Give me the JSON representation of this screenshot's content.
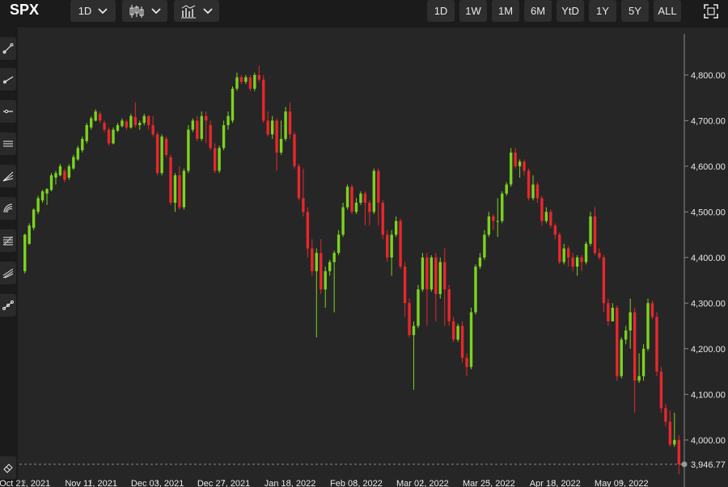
{
  "toolbar": {
    "ticker": "SPX",
    "interval_label": "1D",
    "chart_type_icon": "candlestick-icon",
    "indicators_icon": "indicators-icon",
    "ranges": [
      "1D",
      "1W",
      "1M",
      "6M",
      "YtD",
      "1Y",
      "5Y",
      "ALL"
    ],
    "fullscreen_icon": "fullscreen-icon"
  },
  "left_tools": [
    "trend-line-icon",
    "ray-icon",
    "horizontal-line-icon",
    "parallel-channel-icon",
    "fan-icon",
    "arc-icon",
    "fibonacci-icon",
    "pitchfork-icon",
    "path-icon",
    "eraser-icon"
  ],
  "colors": {
    "up": "#7cd320",
    "down": "#e8272d",
    "background": "#262626",
    "grid": "#3a3a3a",
    "text": "#e8e8e8"
  },
  "chart_data": {
    "type": "candlestick",
    "y_ticks": [
      "4,800.00",
      "4,700.00",
      "4,600.00",
      "4,500.00",
      "4,400.00",
      "4,300.00",
      "4,200.00",
      "4,100.00",
      "4,000.00"
    ],
    "y_tick_values": [
      4800,
      4700,
      4600,
      4500,
      4400,
      4300,
      4200,
      4100,
      4000
    ],
    "x_labels": [
      "Oct 21, 2021",
      "Nov 11, 2021",
      "Dec 03, 2021",
      "Dec 27, 2021",
      "Jan 18, 2022",
      "Feb 08, 2022",
      "Mar 02, 2022",
      "Mar 25, 2022",
      "Apr 18, 2022",
      "May 09, 2022"
    ],
    "x_label_index": [
      0,
      15,
      30,
      45,
      60,
      75,
      90,
      105,
      120,
      135
    ],
    "ylim": [
      3920,
      4890
    ],
    "current_price_label": "3,946.77",
    "current_price": 3946.77,
    "candles": [
      [
        4370,
        4450,
        4365,
        4452
      ],
      [
        4430,
        4470,
        4428,
        4475
      ],
      [
        4465,
        4505,
        4460,
        4508
      ],
      [
        4500,
        4530,
        4495,
        4535
      ],
      [
        4525,
        4545,
        4520,
        4548
      ],
      [
        4540,
        4550,
        4515,
        4552
      ],
      [
        4548,
        4580,
        4545,
        4585
      ],
      [
        4575,
        4585,
        4560,
        4590
      ],
      [
        4580,
        4600,
        4578,
        4605
      ],
      [
        4590,
        4570,
        4565,
        4595
      ],
      [
        4575,
        4600,
        4570,
        4605
      ],
      [
        4595,
        4620,
        4592,
        4625
      ],
      [
        4615,
        4640,
        4612,
        4645
      ],
      [
        4635,
        4660,
        4630,
        4665
      ],
      [
        4655,
        4690,
        4650,
        4695
      ],
      [
        4685,
        4705,
        4680,
        4710
      ],
      [
        4700,
        4720,
        4698,
        4725
      ],
      [
        4715,
        4700,
        4695,
        4720
      ],
      [
        4695,
        4680,
        4675,
        4700
      ],
      [
        4680,
        4650,
        4645,
        4685
      ],
      [
        4650,
        4680,
        4648,
        4685
      ],
      [
        4678,
        4690,
        4675,
        4695
      ],
      [
        4688,
        4700,
        4685,
        4705
      ],
      [
        4698,
        4685,
        4680,
        4702
      ],
      [
        4685,
        4710,
        4682,
        4715
      ],
      [
        4708,
        4690,
        4685,
        4740
      ],
      [
        4690,
        4695,
        4680,
        4700
      ],
      [
        4695,
        4710,
        4690,
        4715
      ],
      [
        4710,
        4690,
        4680,
        4712
      ],
      [
        4690,
        4670,
        4665,
        4710
      ],
      [
        4670,
        4585,
        4580,
        4675
      ],
      [
        4585,
        4665,
        4580,
        4670
      ],
      [
        4660,
        4625,
        4620,
        4665
      ],
      [
        4620,
        4520,
        4515,
        4625
      ],
      [
        4520,
        4580,
        4500,
        4585
      ],
      [
        4580,
        4510,
        4505,
        4600
      ],
      [
        4510,
        4590,
        4505,
        4595
      ],
      [
        4590,
        4680,
        4585,
        4690
      ],
      [
        4680,
        4700,
        4675,
        4705
      ],
      [
        4700,
        4660,
        4655,
        4710
      ],
      [
        4660,
        4710,
        4655,
        4720
      ],
      [
        4710,
        4700,
        4650,
        4720
      ],
      [
        4690,
        4640,
        4635,
        4700
      ],
      [
        4640,
        4590,
        4585,
        4650
      ],
      [
        4590,
        4640,
        4585,
        4645
      ],
      [
        4640,
        4690,
        4635,
        4700
      ],
      [
        4690,
        4710,
        4680,
        4720
      ],
      [
        4700,
        4770,
        4695,
        4775
      ],
      [
        4770,
        4795,
        4765,
        4805
      ],
      [
        4795,
        4785,
        4780,
        4800
      ],
      [
        4785,
        4795,
        4780,
        4800
      ],
      [
        4795,
        4770,
        4765,
        4800
      ],
      [
        4770,
        4800,
        4765,
        4805
      ],
      [
        4800,
        4790,
        4785,
        4820
      ],
      [
        4790,
        4700,
        4695,
        4800
      ],
      [
        4700,
        4670,
        4665,
        4720
      ],
      [
        4670,
        4700,
        4660,
        4710
      ],
      [
        4700,
        4630,
        4590,
        4705
      ],
      [
        4630,
        4660,
        4625,
        4700
      ],
      [
        4660,
        4720,
        4655,
        4730
      ],
      [
        4720,
        4670,
        4660,
        4740
      ],
      [
        4670,
        4600,
        4595,
        4675
      ],
      [
        4600,
        4530,
        4525,
        4605
      ],
      [
        4530,
        4500,
        4490,
        4595
      ],
      [
        4500,
        4420,
        4400,
        4510
      ],
      [
        4420,
        4370,
        4360,
        4440
      ],
      [
        4370,
        4410,
        4225,
        4420
      ],
      [
        4410,
        4330,
        4320,
        4440
      ],
      [
        4330,
        4370,
        4290,
        4380
      ],
      [
        4370,
        4390,
        4360,
        4395
      ],
      [
        4390,
        4410,
        4280,
        4415
      ],
      [
        4410,
        4450,
        4405,
        4460
      ],
      [
        4450,
        4510,
        4445,
        4520
      ],
      [
        4510,
        4555,
        4505,
        4560
      ],
      [
        4555,
        4500,
        4495,
        4560
      ],
      [
        4500,
        4520,
        4495,
        4530
      ],
      [
        4520,
        4540,
        4515,
        4545
      ],
      [
        4540,
        4520,
        4470,
        4545
      ],
      [
        4520,
        4500,
        4470,
        4525
      ],
      [
        4500,
        4590,
        4495,
        4595
      ],
      [
        4590,
        4520,
        4470,
        4595
      ],
      [
        4520,
        4450,
        4440,
        4525
      ],
      [
        4450,
        4400,
        4390,
        4460
      ],
      [
        4400,
        4450,
        4360,
        4460
      ],
      [
        4450,
        4480,
        4445,
        4490
      ],
      [
        4480,
        4380,
        4375,
        4485
      ],
      [
        4380,
        4300,
        4270,
        4390
      ],
      [
        4300,
        4230,
        4225,
        4310
      ],
      [
        4230,
        4250,
        4110,
        4260
      ],
      [
        4250,
        4330,
        4245,
        4340
      ],
      [
        4330,
        4400,
        4325,
        4410
      ],
      [
        4400,
        4330,
        4250,
        4410
      ],
      [
        4330,
        4400,
        4325,
        4405
      ],
      [
        4400,
        4320,
        4260,
        4410
      ],
      [
        4320,
        4390,
        4310,
        4400
      ],
      [
        4390,
        4330,
        4250,
        4420
      ],
      [
        4330,
        4260,
        4250,
        4340
      ],
      [
        4260,
        4220,
        4215,
        4270
      ],
      [
        4220,
        4250,
        4215,
        4255
      ],
      [
        4250,
        4180,
        4170,
        4260
      ],
      [
        4180,
        4160,
        4140,
        4190
      ],
      [
        4160,
        4280,
        4155,
        4290
      ],
      [
        4280,
        4380,
        4275,
        4385
      ],
      [
        4380,
        4400,
        4375,
        4410
      ],
      [
        4400,
        4450,
        4395,
        4460
      ],
      [
        4450,
        4490,
        4445,
        4500
      ],
      [
        4490,
        4480,
        4460,
        4495
      ],
      [
        4480,
        4480,
        4445,
        4530
      ],
      [
        4480,
        4540,
        4475,
        4545
      ],
      [
        4540,
        4560,
        4535,
        4565
      ],
      [
        4560,
        4630,
        4555,
        4640
      ],
      [
        4630,
        4600,
        4595,
        4640
      ],
      [
        4600,
        4610,
        4575,
        4615
      ],
      [
        4610,
        4590,
        4580,
        4615
      ],
      [
        4590,
        4530,
        4525,
        4595
      ],
      [
        4530,
        4560,
        4525,
        4580
      ],
      [
        4560,
        4530,
        4520,
        4565
      ],
      [
        4530,
        4480,
        4470,
        4535
      ],
      [
        4480,
        4500,
        4475,
        4510
      ],
      [
        4500,
        4470,
        4465,
        4505
      ],
      [
        4470,
        4450,
        4440,
        4475
      ],
      [
        4450,
        4390,
        4385,
        4455
      ],
      [
        4390,
        4420,
        4385,
        4430
      ],
      [
        4420,
        4400,
        4380,
        4425
      ],
      [
        4400,
        4380,
        4370,
        4410
      ],
      [
        4380,
        4400,
        4360,
        4405
      ],
      [
        4400,
        4390,
        4370,
        4405
      ],
      [
        4390,
        4430,
        4385,
        4435
      ],
      [
        4430,
        4490,
        4425,
        4500
      ],
      [
        4490,
        4410,
        4405,
        4510
      ],
      [
        4410,
        4400,
        4395,
        4420
      ],
      [
        4400,
        4300,
        4280,
        4405
      ],
      [
        4300,
        4260,
        4250,
        4310
      ],
      [
        4260,
        4290,
        4260,
        4300
      ],
      [
        4290,
        4140,
        4130,
        4295
      ],
      [
        4140,
        4220,
        4135,
        4225
      ],
      [
        4220,
        4240,
        4210,
        4250
      ],
      [
        4240,
        4280,
        4200,
        4310
      ],
      [
        4280,
        4130,
        4060,
        4290
      ],
      [
        4130,
        4140,
        4125,
        4190
      ],
      [
        4140,
        4200,
        4130,
        4210
      ],
      [
        4200,
        4300,
        4195,
        4310
      ],
      [
        4300,
        4270,
        4265,
        4305
      ],
      [
        4270,
        4150,
        4140,
        4280
      ],
      [
        4150,
        4070,
        4060,
        4160
      ],
      [
        4070,
        4040,
        4030,
        4080
      ],
      [
        4040,
        3990,
        3985,
        4065
      ],
      [
        3990,
        4000,
        3985,
        4060
      ],
      [
        4000,
        3947,
        3925,
        4010
      ]
    ]
  }
}
